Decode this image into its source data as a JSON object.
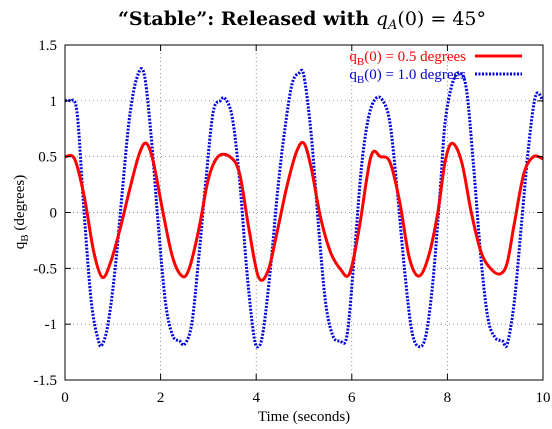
{
  "chart_data": {
    "type": "line",
    "title": {
      "quote_open": "“",
      "stable": "Stable",
      "quote_close": "”: Released with ",
      "var": "q",
      "sub": "A",
      "rest": "(0) = 45°"
    },
    "xlabel": "Time  (seconds)",
    "ylabel": {
      "main": "q",
      "sub": "B",
      "rest": "  (degrees)"
    },
    "xlim": [
      0,
      10
    ],
    "ylim": [
      -1.5,
      1.5
    ],
    "xticks": [
      0,
      2,
      4,
      6,
      8,
      10
    ],
    "xtick_labels": [
      "0",
      "2",
      "4",
      "6",
      "8",
      "10"
    ],
    "yticks": [
      -1.5,
      -1,
      -0.5,
      0,
      0.5,
      1,
      1.5
    ],
    "ytick_labels": [
      "-1.5",
      "-1",
      "-0.5",
      "0",
      "0.5",
      "1",
      "1.5"
    ],
    "grid": true,
    "legend_position": "top-right",
    "series": [
      {
        "name": {
          "main": "q",
          "sub": "B",
          "rest": "(0) = 0.5 degrees"
        },
        "color": "#ff0000",
        "style": "solid",
        "x": [
          0,
          0.2,
          0.4,
          0.6,
          0.78,
          0.95,
          1.15,
          1.35,
          1.55,
          1.7,
          1.85,
          2.05,
          2.25,
          2.45,
          2.6,
          2.8,
          3.0,
          3.2,
          3.45,
          3.65,
          3.85,
          4.05,
          4.25,
          4.45,
          4.65,
          4.85,
          5.0,
          5.15,
          5.35,
          5.55,
          5.75,
          5.95,
          6.15,
          6.4,
          6.6,
          6.8,
          7.0,
          7.2,
          7.4,
          7.6,
          7.8,
          7.95,
          8.1,
          8.3,
          8.5,
          8.7,
          8.9,
          9.1,
          9.25,
          9.4,
          9.6,
          9.8,
          10.0
        ],
        "y": [
          0.5,
          0.48,
          0.15,
          -0.35,
          -0.58,
          -0.45,
          -0.15,
          0.2,
          0.52,
          0.62,
          0.45,
          0.0,
          -0.4,
          -0.57,
          -0.5,
          -0.15,
          0.3,
          0.5,
          0.5,
          0.35,
          -0.15,
          -0.58,
          -0.52,
          -0.15,
          0.25,
          0.55,
          0.62,
          0.4,
          -0.05,
          -0.35,
          -0.5,
          -0.55,
          -0.15,
          0.5,
          0.5,
          0.45,
          0.1,
          -0.4,
          -0.57,
          -0.4,
          0.0,
          0.45,
          0.62,
          0.45,
          0.0,
          -0.35,
          -0.5,
          -0.55,
          -0.45,
          -0.1,
          0.35,
          0.5,
          0.48
        ]
      },
      {
        "name": {
          "main": "q",
          "sub": "B",
          "rest": "(0) = 1.0 degrees"
        },
        "color": "#0000dd",
        "style": "dotted",
        "x": [
          0,
          0.1,
          0.25,
          0.4,
          0.55,
          0.7,
          0.78,
          0.9,
          1.05,
          1.2,
          1.35,
          1.5,
          1.65,
          1.8,
          1.95,
          2.1,
          2.25,
          2.4,
          2.5,
          2.65,
          2.8,
          2.95,
          3.1,
          3.25,
          3.35,
          3.5,
          3.65,
          3.8,
          3.95,
          4.05,
          4.15,
          4.3,
          4.45,
          4.6,
          4.75,
          4.9,
          5.0,
          5.15,
          5.3,
          5.45,
          5.6,
          5.75,
          5.9,
          6.05,
          6.2,
          6.35,
          6.5,
          6.65,
          6.8,
          6.95,
          7.1,
          7.25,
          7.4,
          7.55,
          7.7,
          7.85,
          7.95,
          8.1,
          8.25,
          8.4,
          8.55,
          8.7,
          8.85,
          9.0,
          9.15,
          9.25,
          9.4,
          9.55,
          9.7,
          9.85,
          10.0
        ],
        "y": [
          1.0,
          1.0,
          0.9,
          0.0,
          -0.8,
          -1.15,
          -1.18,
          -1.0,
          -0.5,
          0.2,
          0.85,
          1.2,
          1.25,
          0.7,
          -0.1,
          -0.8,
          -1.1,
          -1.15,
          -1.18,
          -1.0,
          -0.4,
          0.3,
          0.9,
          1.0,
          1.02,
          0.85,
          0.3,
          -0.5,
          -1.1,
          -1.2,
          -1.05,
          -0.5,
          0.2,
          0.75,
          1.15,
          1.25,
          1.22,
          0.7,
          -0.1,
          -0.8,
          -1.1,
          -1.15,
          -1.1,
          -0.4,
          0.4,
          0.85,
          1.02,
          1.0,
          0.8,
          0.2,
          -0.5,
          -1.05,
          -1.2,
          -1.1,
          -0.6,
          0.2,
          0.8,
          1.15,
          1.25,
          1.1,
          0.4,
          -0.4,
          -0.95,
          -1.12,
          -1.15,
          -1.18,
          -0.8,
          -0.1,
          0.6,
          1.05,
          1.0
        ]
      }
    ]
  }
}
